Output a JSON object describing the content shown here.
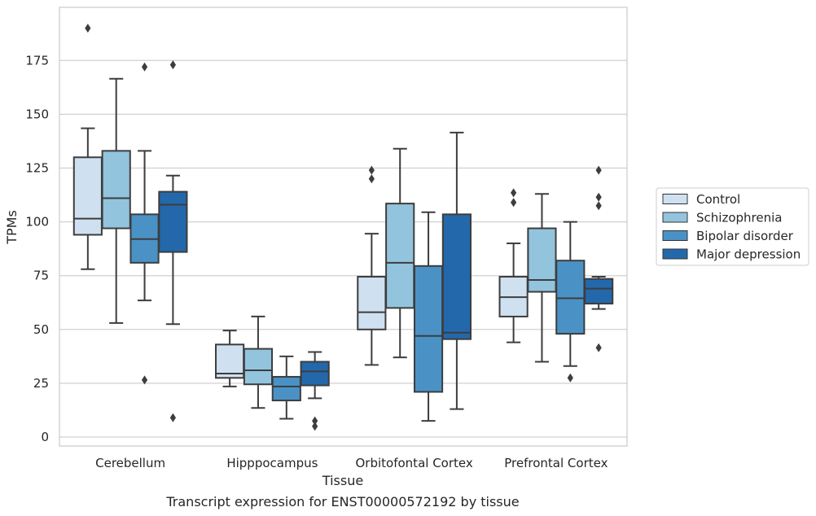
{
  "caption": "Transcript expression for ENST00000572192 by tissue",
  "colors": {
    "Control": "#cfe1f1",
    "Schizophrenia": "#93c4de",
    "Bipolar disorder": "#4a92c5",
    "Major depression": "#2368aa",
    "edge": "#3d3d3d",
    "grid": "#d0d0d0",
    "frame": "#cccccc"
  },
  "chart_data": {
    "type": "box",
    "title": "",
    "xlabel": "Tissue",
    "ylabel": "TPMs",
    "ylim": [
      -4,
      199
    ],
    "yticks": [
      0,
      25,
      50,
      75,
      100,
      125,
      150,
      175
    ],
    "grid": "horizontal",
    "legend_position": "right",
    "categories": [
      "Cerebellum",
      "Hipppocampus",
      "Orbitofontal Cortex",
      "Prefrontal Cortex"
    ],
    "series": [
      {
        "name": "Control",
        "boxes": [
          {
            "whislo": 78,
            "q1": 94,
            "med": 101.5,
            "q3": 130,
            "whishi": 143.5,
            "fliers": [
              190
            ]
          },
          {
            "whislo": 23.5,
            "q1": 27.5,
            "med": 29.5,
            "q3": 43,
            "whishi": 49.5,
            "fliers": []
          },
          {
            "whislo": 33.5,
            "q1": 50,
            "med": 58,
            "q3": 74.5,
            "whishi": 94.5,
            "fliers": [
              120,
              124
            ]
          },
          {
            "whislo": 44,
            "q1": 56,
            "med": 65,
            "q3": 74.5,
            "whishi": 90,
            "fliers": [
              109,
              113.5
            ]
          }
        ]
      },
      {
        "name": "Schizophrenia",
        "boxes": [
          {
            "whislo": 53,
            "q1": 97,
            "med": 111,
            "q3": 133,
            "whishi": 166.5,
            "fliers": []
          },
          {
            "whislo": 13.5,
            "q1": 24.5,
            "med": 31,
            "q3": 41,
            "whishi": 56,
            "fliers": []
          },
          {
            "whislo": 37,
            "q1": 60,
            "med": 81,
            "q3": 108.5,
            "whishi": 134,
            "fliers": []
          },
          {
            "whislo": 35,
            "q1": 67.5,
            "med": 73,
            "q3": 97,
            "whishi": 113,
            "fliers": []
          }
        ]
      },
      {
        "name": "Bipolar disorder",
        "boxes": [
          {
            "whislo": 63.5,
            "q1": 81,
            "med": 92,
            "q3": 103.5,
            "whishi": 133,
            "fliers": [
              26.5,
              172
            ]
          },
          {
            "whislo": 8.5,
            "q1": 17,
            "med": 23.5,
            "q3": 28,
            "whishi": 37.5,
            "fliers": []
          },
          {
            "whislo": 7.5,
            "q1": 21,
            "med": 47,
            "q3": 79.5,
            "whishi": 104.5,
            "fliers": []
          },
          {
            "whislo": 33,
            "q1": 48,
            "med": 64.5,
            "q3": 82,
            "whishi": 100,
            "fliers": [
              27.5
            ]
          }
        ]
      },
      {
        "name": "Major depression",
        "boxes": [
          {
            "whislo": 52.5,
            "q1": 86,
            "med": 108,
            "q3": 114,
            "whishi": 121.5,
            "fliers": [
              9,
              173
            ]
          },
          {
            "whislo": 18,
            "q1": 24,
            "med": 30.5,
            "q3": 35,
            "whishi": 39.5,
            "fliers": [
              5,
              7.5
            ]
          },
          {
            "whislo": 13,
            "q1": 45.5,
            "med": 48.5,
            "q3": 103.5,
            "whishi": 141.5,
            "fliers": []
          },
          {
            "whislo": 59.5,
            "q1": 62,
            "med": 69,
            "q3": 73.5,
            "whishi": 74.5,
            "fliers": [
              41.5,
              107.5,
              111.5,
              124
            ]
          }
        ]
      }
    ]
  }
}
